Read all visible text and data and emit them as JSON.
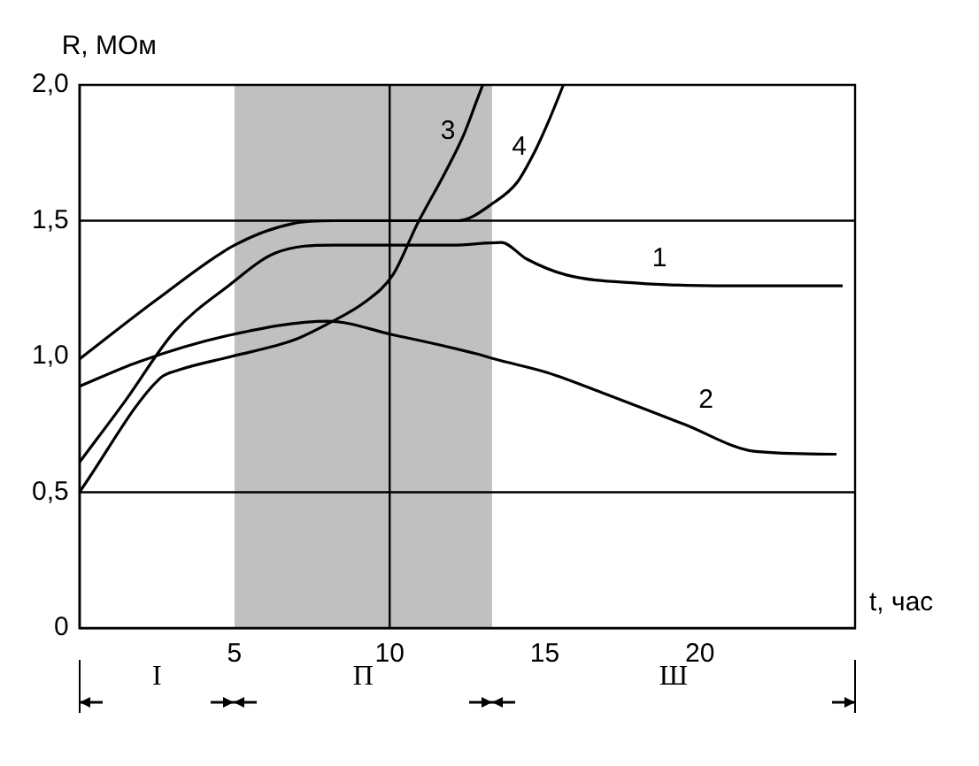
{
  "chart_data": {
    "type": "line",
    "xlabel": "t, час",
    "ylabel": "R, МОм",
    "xlim": [
      0,
      25
    ],
    "ylim": [
      0,
      2
    ],
    "xticks": [
      5,
      10,
      15,
      20
    ],
    "yticks": [
      0,
      {
        "value": 0.5,
        "label": "0,5"
      },
      {
        "value": 1,
        "label": "1,0"
      },
      {
        "value": 1.5,
        "label": "1,5"
      },
      {
        "value": 2,
        "label": "2,0"
      }
    ],
    "grid": false,
    "marker": "none",
    "line_style": "solid",
    "ref_lines": [
      {
        "axis": "y",
        "value": 0.5
      },
      {
        "axis": "y",
        "value": 1.5
      },
      {
        "axis": "x",
        "value": 10
      }
    ],
    "bands": [
      {
        "axis": "x",
        "from": 5,
        "to": 13.3,
        "label": "П",
        "color": "#c0c0c0"
      }
    ],
    "annotations": [
      "I",
      "Ш"
    ],
    "series": [
      {
        "name": "1",
        "color": "#000000",
        "x": [
          0,
          1.5,
          3.05,
          4.8,
          6.3,
          8.2,
          10,
          12,
          13.6,
          14.4,
          15.7,
          18,
          21,
          24.6
        ],
        "values": [
          0.61,
          0.84,
          1.09,
          1.26,
          1.38,
          1.41,
          1.41,
          1.41,
          1.42,
          1.36,
          1.3,
          1.27,
          1.26,
          1.26
        ]
      },
      {
        "name": "2",
        "color": "#000000",
        "x": [
          0,
          1.9,
          4.9,
          8,
          10.1,
          12.8,
          13.4,
          15.1,
          17,
          19.5,
          21.8,
          24.4
        ],
        "values": [
          0.89,
          0.98,
          1.08,
          1.13,
          1.08,
          1.01,
          0.99,
          0.94,
          0.86,
          0.75,
          0.65,
          0.64
        ]
      },
      {
        "name": "3",
        "color": "#000000",
        "x": [
          0,
          2.6,
          3.2,
          4.9,
          6.9,
          8,
          9.2,
          10.1,
          10.9,
          11.8,
          12.4,
          12.8,
          13
        ],
        "values": [
          0.5,
          0.92,
          0.95,
          1,
          1.06,
          1.12,
          1.2,
          1.3,
          1.49,
          1.68,
          1.82,
          1.94,
          2
        ]
      },
      {
        "name": "4",
        "color": "#000000",
        "x": [
          0,
          2.5,
          5,
          6.9,
          8.2,
          10,
          12.2,
          13.4,
          14.1,
          14.7,
          15.1,
          15.6
        ],
        "values": [
          0.99,
          1.21,
          1.41,
          1.49,
          1.5,
          1.5,
          1.5,
          1.57,
          1.64,
          1.76,
          1.86,
          2
        ]
      }
    ]
  }
}
